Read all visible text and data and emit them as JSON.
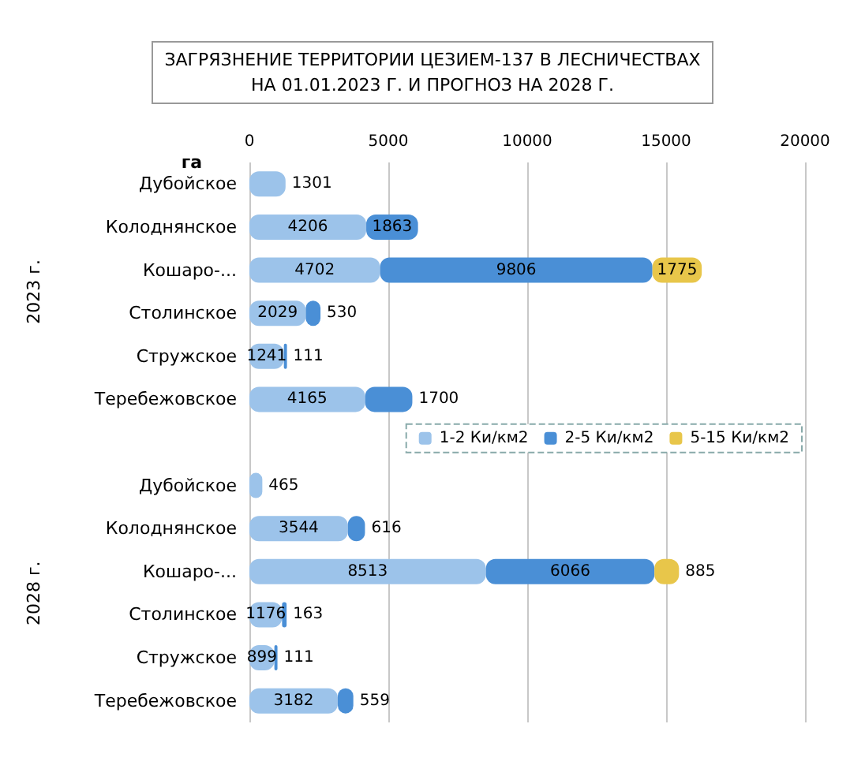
{
  "chart_data": {
    "type": "bar",
    "orientation": "horizontal",
    "stacked": true,
    "title": "ЗАГРЯЗНЕНИЕ ТЕРРИТОРИИ ЦЕЗИЕМ-137 В ЛЕСНИЧЕСТВАХ\nНА 01.01.2023 Г. И ПРОГНОЗ НА 2028 Г.",
    "xlabel": "га",
    "categories": [
      "Дубойское",
      "Колоднянское",
      "Кошаро-...",
      "Столинское",
      "Стружское",
      "Теребежовское",
      null,
      "Дубойское",
      "Колоднянское",
      "Кошаро-...",
      "Столинское",
      "Стружское",
      "Теребежовское"
    ],
    "series": [
      {
        "name": "1-2 Ки/км2",
        "color": "#9cc3ea",
        "values": [
          1301,
          4206,
          4702,
          2029,
          1241,
          4165,
          null,
          465,
          3544,
          8513,
          1176,
          899,
          3182
        ]
      },
      {
        "name": "2-5 Ки/км2",
        "color": "#4a8fd6",
        "values": [
          null,
          1863,
          9806,
          530,
          111,
          1700,
          null,
          null,
          616,
          6066,
          163,
          111,
          559
        ]
      },
      {
        "name": "5-15 Ки/км2",
        "color": "#e8c64a",
        "values": [
          null,
          null,
          1775,
          null,
          null,
          null,
          null,
          null,
          null,
          885,
          null,
          null,
          null
        ]
      }
    ],
    "xlim": [
      0,
      20000
    ],
    "xticks": [
      0,
      5000,
      10000,
      15000,
      20000
    ],
    "grid": "x",
    "legend": "right",
    "data_labels": true,
    "annotations": [
      "2023 г.",
      "2028 г."
    ]
  }
}
